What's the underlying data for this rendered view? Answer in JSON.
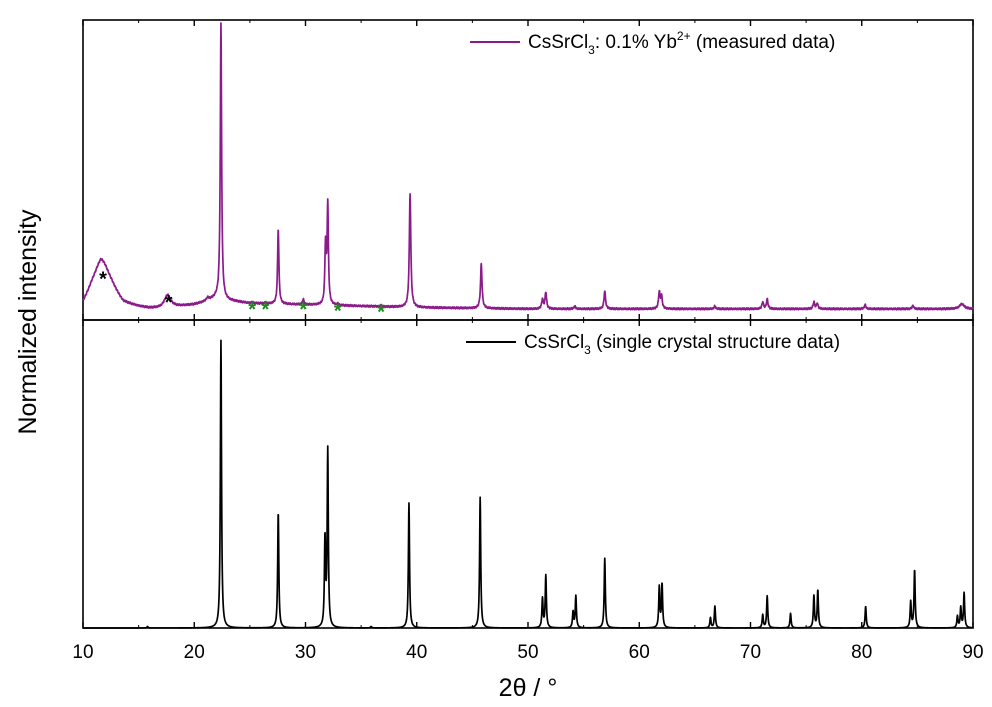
{
  "chart_data": {
    "type": "line",
    "xlabel": "2θ / °",
    "ylabel": "Normalized intensity",
    "xlim": [
      10,
      90
    ],
    "x_ticks": [
      10,
      20,
      30,
      40,
      50,
      60,
      70,
      80,
      90
    ],
    "grid": false,
    "legend_placement": "top-right",
    "panels": [
      {
        "id": "measured",
        "legend": {
          "base": "CsSrCl",
          "sub": "3",
          "mid": ": 0.1% Yb",
          "sup": "2+",
          "tail": " (measured data)"
        },
        "color": "#8b1a8b",
        "ylim": [
          0,
          1.08
        ],
        "baseline": 0.04,
        "background": [
          [
            10,
            0.05
          ],
          [
            10.8,
            0.1
          ],
          [
            11.6,
            0.13
          ],
          [
            12.6,
            0.1
          ],
          [
            13.6,
            0.055
          ],
          [
            15,
            0.045
          ],
          [
            16,
            0.04
          ],
          [
            17,
            0.04
          ],
          [
            18,
            0.045
          ],
          [
            19,
            0.05
          ],
          [
            20,
            0.055
          ],
          [
            21,
            0.065
          ],
          [
            22,
            0.08
          ],
          [
            23,
            0.07
          ],
          [
            25,
            0.06
          ],
          [
            30,
            0.055
          ],
          [
            35,
            0.05
          ],
          [
            40,
            0.045
          ],
          [
            50,
            0.04
          ],
          [
            70,
            0.04
          ],
          [
            90,
            0.04
          ]
        ],
        "peaks": [
          {
            "x": 11.7,
            "h": 0.09,
            "w": 0.9
          },
          {
            "x": 17.6,
            "h": 0.045,
            "w": 0.35
          },
          {
            "x": 21.2,
            "h": 0.01,
            "w": 0.15
          },
          {
            "x": 22.4,
            "h": 0.99,
            "w": 0.07
          },
          {
            "x": 25.2,
            "h": 0.005,
            "w": 0.07
          },
          {
            "x": 26.4,
            "h": 0.004,
            "w": 0.07
          },
          {
            "x": 27.55,
            "h": 0.27,
            "w": 0.07
          },
          {
            "x": 29.8,
            "h": 0.02,
            "w": 0.07
          },
          {
            "x": 31.8,
            "h": 0.21,
            "w": 0.07
          },
          {
            "x": 32.0,
            "h": 0.36,
            "w": 0.07
          },
          {
            "x": 32.9,
            "h": 0.005,
            "w": 0.07
          },
          {
            "x": 36.8,
            "h": 0.005,
            "w": 0.07
          },
          {
            "x": 39.4,
            "h": 0.41,
            "w": 0.08
          },
          {
            "x": 45.8,
            "h": 0.16,
            "w": 0.08
          },
          {
            "x": 51.3,
            "h": 0.035,
            "w": 0.08
          },
          {
            "x": 51.6,
            "h": 0.06,
            "w": 0.08
          },
          {
            "x": 54.2,
            "h": 0.01,
            "w": 0.08
          },
          {
            "x": 56.9,
            "h": 0.065,
            "w": 0.08
          },
          {
            "x": 61.8,
            "h": 0.06,
            "w": 0.08
          },
          {
            "x": 62.0,
            "h": 0.045,
            "w": 0.08
          },
          {
            "x": 66.8,
            "h": 0.01,
            "w": 0.08
          },
          {
            "x": 71.1,
            "h": 0.025,
            "w": 0.08
          },
          {
            "x": 71.5,
            "h": 0.035,
            "w": 0.08
          },
          {
            "x": 75.7,
            "h": 0.025,
            "w": 0.08
          },
          {
            "x": 76.0,
            "h": 0.02,
            "w": 0.08
          },
          {
            "x": 80.3,
            "h": 0.015,
            "w": 0.08
          },
          {
            "x": 84.6,
            "h": 0.012,
            "w": 0.08
          },
          {
            "x": 89.0,
            "h": 0.018,
            "w": 0.25
          }
        ],
        "annotations": [
          {
            "x": 11.8,
            "y": 0.175,
            "text": "*",
            "color": "#000000"
          },
          {
            "x": 17.7,
            "y": 0.09,
            "text": "*",
            "color": "#000000"
          },
          {
            "x": 25.2,
            "y": 0.065,
            "text": "*",
            "color": "#1a8a1a"
          },
          {
            "x": 26.4,
            "y": 0.065,
            "text": "*",
            "color": "#1a8a1a"
          },
          {
            "x": 29.8,
            "y": 0.065,
            "text": "*",
            "color": "#1a8a1a"
          },
          {
            "x": 32.9,
            "y": 0.06,
            "text": "*",
            "color": "#1a8a1a"
          },
          {
            "x": 36.8,
            "y": 0.055,
            "text": "*",
            "color": "#1a8a1a"
          }
        ]
      },
      {
        "id": "reference",
        "legend": {
          "base": "CsSrCl",
          "sub": "3",
          "mid": "",
          "sup": "",
          "tail": " (single crystal structure data)"
        },
        "color": "#000000",
        "ylim": [
          0,
          1.06
        ],
        "baseline": 0.0,
        "background": [],
        "peaks": [
          {
            "x": 15.8,
            "h": 0.005,
            "w": 0.06
          },
          {
            "x": 22.4,
            "h": 0.99,
            "w": 0.06
          },
          {
            "x": 27.55,
            "h": 0.4,
            "w": 0.06
          },
          {
            "x": 31.75,
            "h": 0.3,
            "w": 0.06
          },
          {
            "x": 32.0,
            "h": 0.61,
            "w": 0.06
          },
          {
            "x": 35.9,
            "h": 0.005,
            "w": 0.06
          },
          {
            "x": 39.3,
            "h": 0.43,
            "w": 0.06
          },
          {
            "x": 45.7,
            "h": 0.45,
            "w": 0.06
          },
          {
            "x": 51.3,
            "h": 0.1,
            "w": 0.06
          },
          {
            "x": 51.6,
            "h": 0.18,
            "w": 0.06
          },
          {
            "x": 54.05,
            "h": 0.055,
            "w": 0.06
          },
          {
            "x": 54.3,
            "h": 0.11,
            "w": 0.06
          },
          {
            "x": 56.9,
            "h": 0.24,
            "w": 0.06
          },
          {
            "x": 61.8,
            "h": 0.14,
            "w": 0.06
          },
          {
            "x": 62.05,
            "h": 0.15,
            "w": 0.06
          },
          {
            "x": 66.4,
            "h": 0.035,
            "w": 0.06
          },
          {
            "x": 66.8,
            "h": 0.075,
            "w": 0.06
          },
          {
            "x": 71.1,
            "h": 0.045,
            "w": 0.06
          },
          {
            "x": 71.5,
            "h": 0.11,
            "w": 0.06
          },
          {
            "x": 73.6,
            "h": 0.05,
            "w": 0.06
          },
          {
            "x": 75.7,
            "h": 0.11,
            "w": 0.06
          },
          {
            "x": 76.05,
            "h": 0.13,
            "w": 0.06
          },
          {
            "x": 80.35,
            "h": 0.075,
            "w": 0.06
          },
          {
            "x": 84.4,
            "h": 0.09,
            "w": 0.06
          },
          {
            "x": 84.75,
            "h": 0.2,
            "w": 0.06
          },
          {
            "x": 88.6,
            "h": 0.04,
            "w": 0.06
          },
          {
            "x": 88.9,
            "h": 0.07,
            "w": 0.06
          },
          {
            "x": 89.2,
            "h": 0.12,
            "w": 0.06
          }
        ],
        "annotations": []
      }
    ]
  }
}
